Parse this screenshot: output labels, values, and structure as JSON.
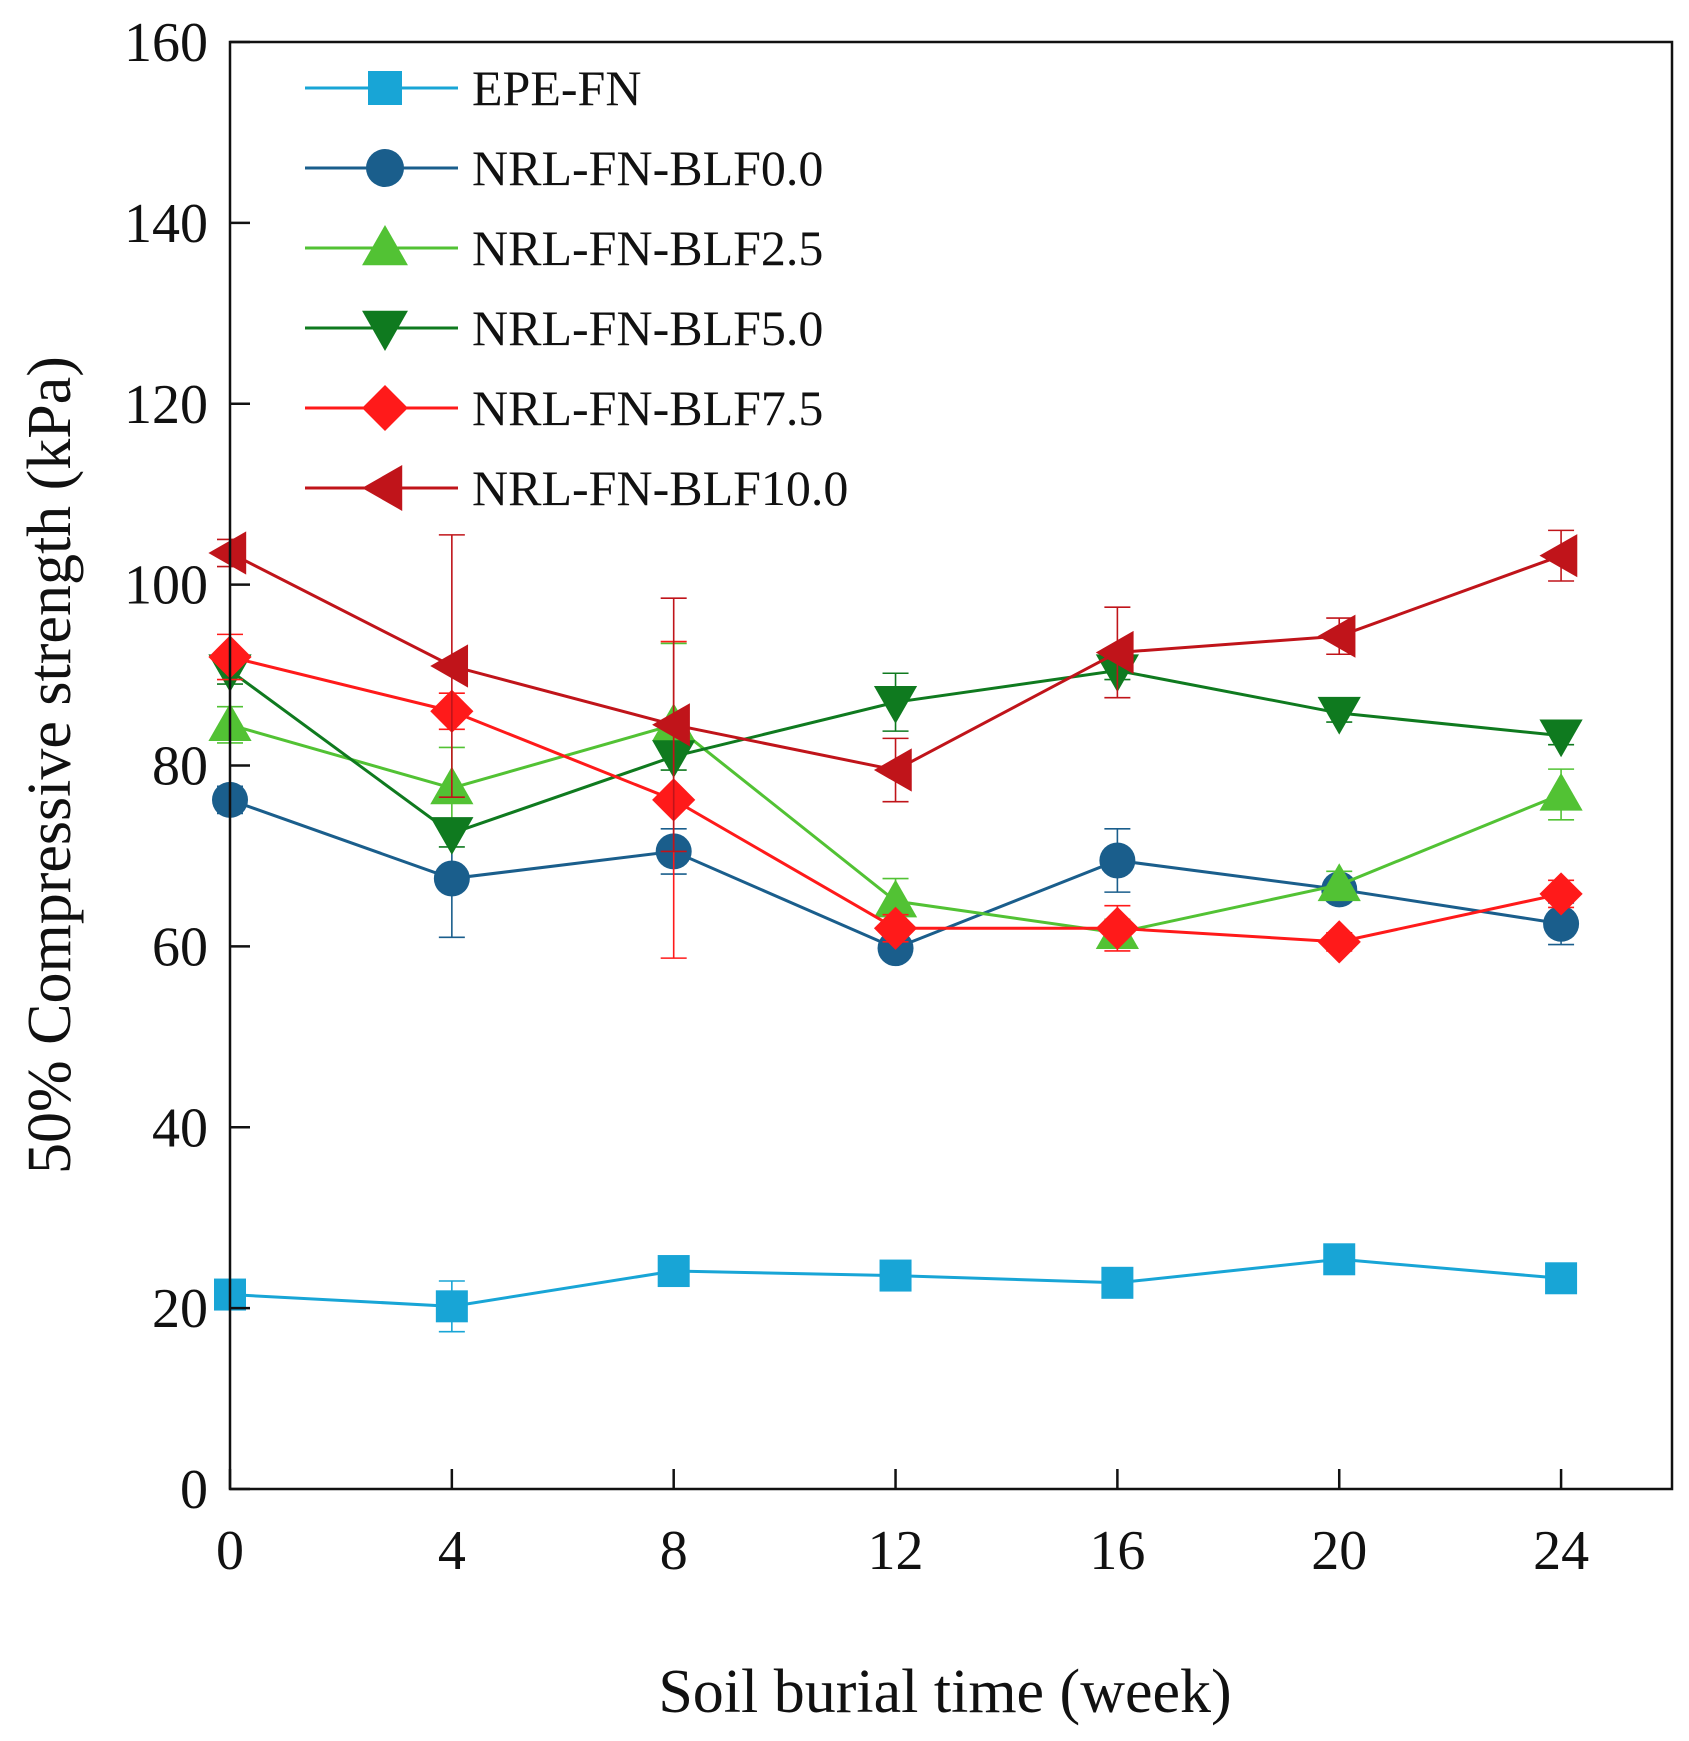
{
  "chart_data": {
    "type": "line",
    "title": "",
    "xlabel": "Soil burial time (week)",
    "ylabel": "50% Compressive strength (kPa)",
    "xlim": [
      0,
      26
    ],
    "ylim": [
      0,
      160
    ],
    "xticks": [
      "0",
      "4",
      "8",
      "12",
      "16",
      "20",
      "24"
    ],
    "yticks": [
      "0",
      "20",
      "40",
      "60",
      "80",
      "100",
      "120",
      "140",
      "160"
    ],
    "grid": false,
    "legend_position": "top-left",
    "x": [
      0,
      4,
      8,
      12,
      16,
      20,
      24
    ],
    "series": [
      {
        "name": "EPE-FN",
        "color": "#18a5d6",
        "marker": "square",
        "values": [
          21.5,
          20.2,
          24.1,
          23.6,
          22.8,
          25.4,
          23.3
        ],
        "errors": [
          0.8,
          2.8,
          0.8,
          0.8,
          0.8,
          0.8,
          0.8
        ]
      },
      {
        "name": "NRL-FN-BLF0.0",
        "color": "#1a5e8c",
        "marker": "circle",
        "values": [
          76.2,
          67.5,
          70.5,
          59.8,
          69.5,
          66.3,
          62.5
        ],
        "errors": [
          1.5,
          6.5,
          2.5,
          1.0,
          3.5,
          1.2,
          2.3
        ]
      },
      {
        "name": "NRL-FN-BLF2.5",
        "color": "#52c234",
        "marker": "triangle-up",
        "values": [
          84.5,
          77.5,
          84.5,
          65.0,
          61.5,
          66.8,
          76.8
        ],
        "errors": [
          2.0,
          4.5,
          9.0,
          2.5,
          1.5,
          1.5,
          2.8
        ]
      },
      {
        "name": "NRL-FN-BLF5.0",
        "color": "#0f7a1f",
        "marker": "triangle-down",
        "values": [
          90.5,
          72.5,
          81.0,
          87.0,
          90.5,
          85.8,
          83.3
        ],
        "errors": [
          1.5,
          1.5,
          1.5,
          3.2,
          1.0,
          1.0,
          1.0
        ]
      },
      {
        "name": "NRL-FN-BLF7.5",
        "color": "#ff1a1a",
        "marker": "diamond",
        "values": [
          92.0,
          86.0,
          76.2,
          62.0,
          62.0,
          60.5,
          65.8
        ],
        "errors": [
          2.5,
          2.0,
          17.5,
          1.5,
          2.5,
          1.0,
          1.5
        ]
      },
      {
        "name": "NRL-FN-BLF10.0",
        "color": "#c0141a",
        "marker": "triangle-left",
        "values": [
          103.5,
          91.0,
          84.5,
          79.5,
          92.5,
          94.3,
          103.2
        ],
        "errors": [
          1.5,
          14.5,
          14.0,
          3.5,
          5.0,
          2.0,
          2.8
        ]
      }
    ]
  }
}
